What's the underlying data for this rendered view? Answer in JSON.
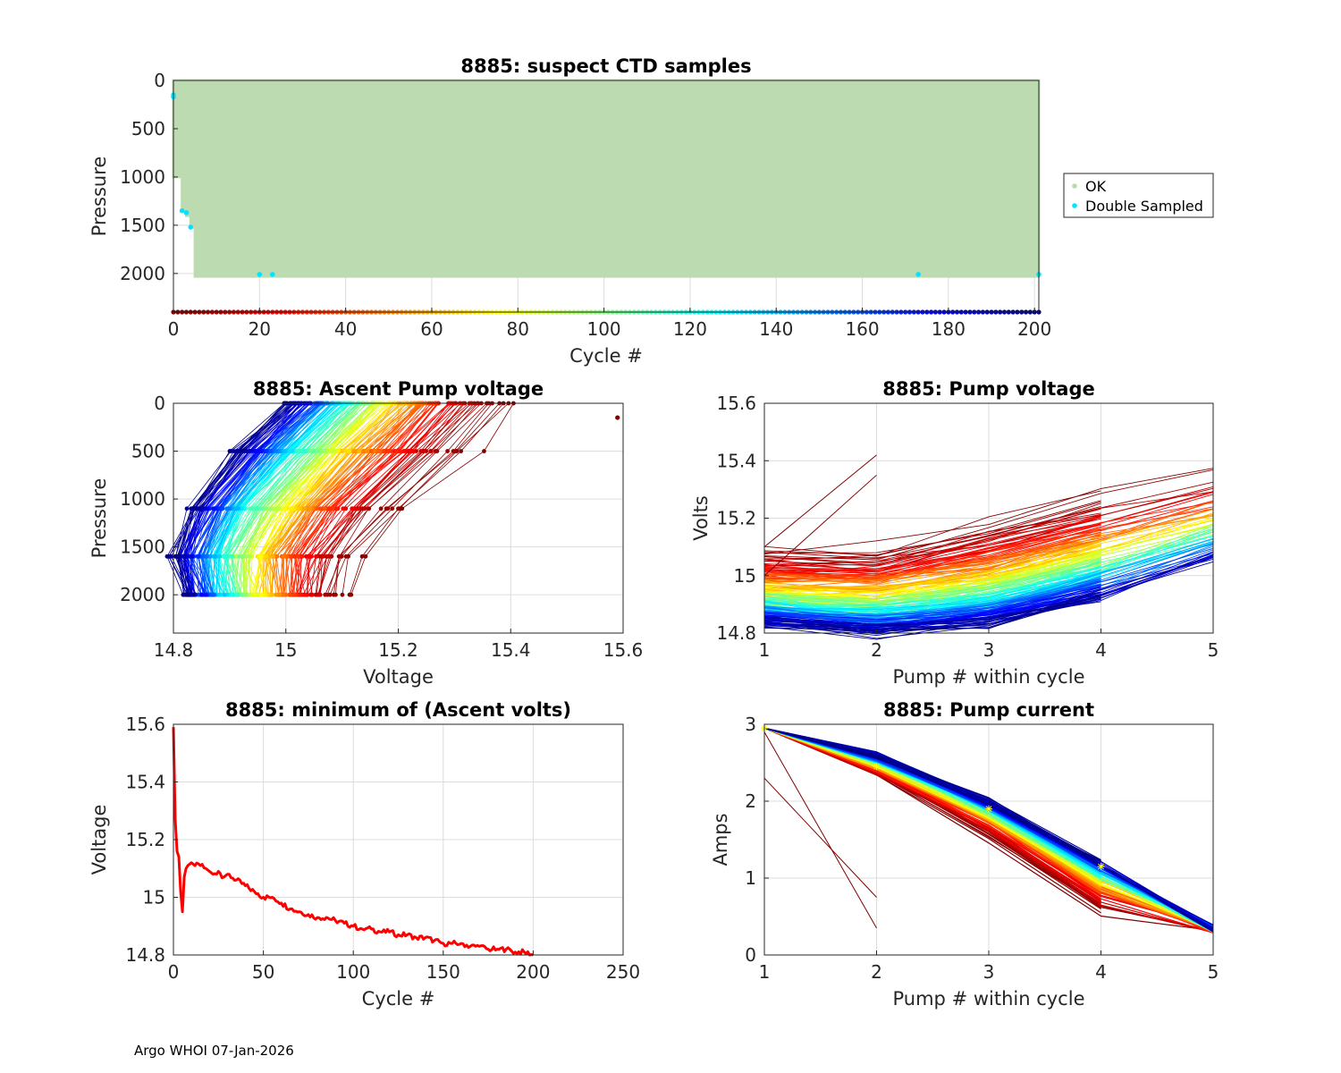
{
  "footer": "Argo WHOI 07-Jan-2026",
  "colors": {
    "ok": "#bddbb1",
    "double_sampled": "#00e5ff",
    "min_voltage_line": "#ff0000",
    "grid": "#dcdcdc",
    "marker_star": "#ffff00"
  },
  "chart_data": [
    {
      "id": "suspect",
      "type": "scatter",
      "title": "8885: suspect CTD samples",
      "xlabel": "Cycle #",
      "ylabel": "Pressure",
      "xlim": [
        0,
        201
      ],
      "ylim": [
        0,
        2400
      ],
      "y_reversed": true,
      "xticks": [
        0,
        20,
        40,
        60,
        80,
        100,
        120,
        140,
        160,
        180,
        200
      ],
      "yticks": [
        0,
        500,
        1000,
        1500,
        2000
      ],
      "legend": {
        "placement": "outside-right",
        "entries": [
          "OK",
          "Double Sampled"
        ]
      },
      "ok_region": {
        "x": [
          0,
          201
        ],
        "max_pressure_by_cycle": [
          [
            0,
            1000
          ],
          [
            2,
            1350
          ],
          [
            3,
            1400
          ],
          [
            4,
            1520
          ],
          [
            5,
            2030
          ],
          [
            201,
            2030
          ]
        ]
      },
      "double_sampled_points": [
        [
          0,
          150
        ],
        [
          0,
          170
        ],
        [
          2,
          1350
        ],
        [
          3,
          1370
        ],
        [
          4,
          1520
        ],
        [
          20,
          2010
        ],
        [
          23,
          2010
        ],
        [
          173,
          2010
        ],
        [
          201,
          2010
        ]
      ],
      "cycle_color_strip": {
        "pressure": 2400,
        "cycles": [
          0,
          201
        ]
      }
    },
    {
      "id": "ascent",
      "type": "line",
      "title": "8885: Ascent Pump voltage",
      "xlabel": "Voltage",
      "ylabel": "Pressure",
      "xlim": [
        14.8,
        15.6
      ],
      "ylim": [
        0,
        2400
      ],
      "y_reversed": true,
      "xticks": [
        14.8,
        15,
        15.2,
        15.4,
        15.6
      ],
      "yticks": [
        0,
        500,
        1000,
        1500,
        2000
      ],
      "pressure_levels": [
        0,
        500,
        1100,
        1600,
        2000
      ],
      "voltage_at_levels_first_cycle": [
        15.42,
        15.34,
        15.22,
        15.14,
        15.12
      ],
      "voltage_at_levels_last_cycle": [
        15.0,
        14.91,
        14.83,
        14.8,
        14.82
      ],
      "series_count": 201,
      "outlier_point": [
        15.59,
        150
      ]
    },
    {
      "id": "pumpv",
      "type": "line",
      "title": "8885: Pump voltage",
      "xlabel": "Pump # within cycle",
      "ylabel": "Volts",
      "xlim": [
        1,
        5
      ],
      "ylim": [
        14.8,
        15.6
      ],
      "xticks": [
        1,
        2,
        3,
        4,
        5
      ],
      "yticks": [
        14.8,
        15,
        15.2,
        15.4,
        15.6
      ],
      "ytick_labels": [
        "14.8",
        "15",
        "15.2",
        "15.4",
        "15.6"
      ],
      "first_cycle_profile": [
        15.1,
        15.1,
        15.2,
        15.3,
        15.38
      ],
      "last_cycle_profile": [
        14.83,
        14.8,
        14.83,
        14.92,
        15.05
      ],
      "series_count": 201
    },
    {
      "id": "minv",
      "type": "line",
      "title": "8885: minimum of (Ascent volts)",
      "xlabel": "Cycle #",
      "ylabel": "Voltage",
      "xlim": [
        0,
        250
      ],
      "ylim": [
        14.8,
        15.6
      ],
      "xticks": [
        0,
        50,
        100,
        150,
        200,
        250
      ],
      "yticks": [
        14.8,
        15,
        15.2,
        15.4,
        15.6
      ],
      "ytick_labels": [
        "14.8",
        "15",
        "15.2",
        "15.4",
        "15.6"
      ],
      "series": [
        {
          "name": "min ascent volts",
          "x": [
            0,
            1,
            2,
            3,
            4,
            5,
            6,
            7,
            8,
            10,
            12,
            15,
            18,
            20,
            22,
            25,
            28,
            30,
            35,
            40,
            45,
            50,
            55,
            60,
            65,
            70,
            75,
            80,
            85,
            90,
            95,
            100,
            105,
            110,
            115,
            120,
            125,
            130,
            135,
            140,
            145,
            150,
            155,
            160,
            165,
            170,
            175,
            180,
            185,
            190,
            195,
            200
          ],
          "values": [
            15.59,
            15.27,
            15.16,
            15.14,
            15.02,
            14.95,
            15.07,
            15.1,
            15.11,
            15.12,
            15.11,
            15.11,
            15.1,
            15.09,
            15.08,
            15.09,
            15.07,
            15.08,
            15.06,
            15.04,
            15.02,
            15.0,
            15.0,
            14.98,
            14.96,
            14.95,
            14.94,
            14.93,
            14.93,
            14.92,
            14.91,
            14.9,
            14.89,
            14.89,
            14.88,
            14.88,
            14.87,
            14.87,
            14.86,
            14.86,
            14.85,
            14.84,
            14.84,
            14.84,
            14.83,
            14.83,
            14.82,
            14.82,
            14.82,
            14.81,
            14.81,
            14.8
          ]
        }
      ]
    },
    {
      "id": "pumpc",
      "type": "line",
      "title": "8885: Pump current",
      "xlabel": "Pump # within cycle",
      "ylabel": "Amps",
      "xlim": [
        1,
        5
      ],
      "ylim": [
        0,
        3
      ],
      "xticks": [
        1,
        2,
        3,
        4,
        5
      ],
      "yticks": [
        0,
        1,
        2,
        3
      ],
      "first_cycle_profile": [
        2.95,
        2.3,
        1.5,
        0.5,
        0.33
      ],
      "last_cycle_profile": [
        2.95,
        2.6,
        2.0,
        1.2,
        0.35
      ],
      "outlier_lines": [
        [
          [
            1,
            2.3
          ],
          [
            2,
            0.75
          ]
        ],
        [
          [
            1,
            2.9
          ],
          [
            2,
            0.35
          ]
        ]
      ],
      "series_count": 201
    }
  ]
}
